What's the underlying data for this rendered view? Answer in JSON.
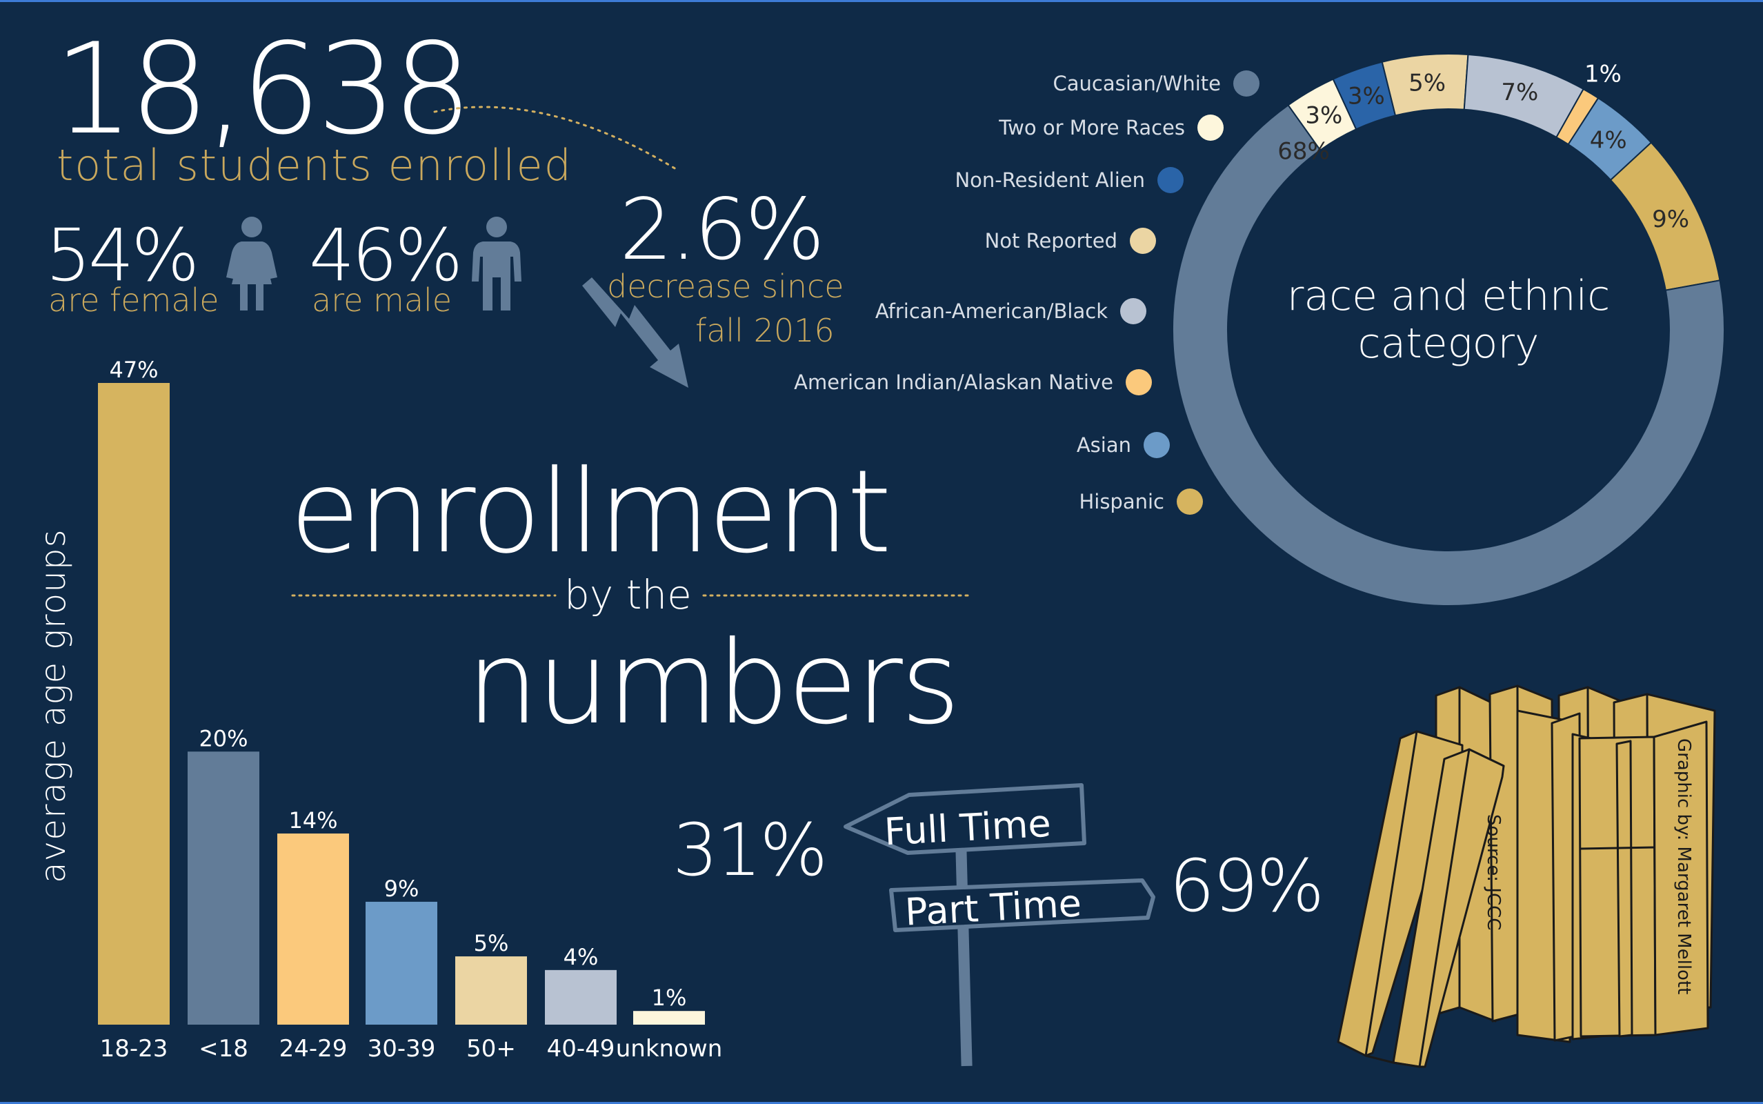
{
  "header": {
    "total_students": "18,638",
    "total_label": "total students enrolled",
    "female_pct": "54%",
    "female_label": "are female",
    "male_pct": "46%",
    "male_label": "are male",
    "decrease_pct": "2.6%",
    "decrease_line1": "decrease since",
    "decrease_line2": "fall 2016"
  },
  "title": {
    "line1": "enrollment",
    "line2": "by the",
    "line3": "numbers"
  },
  "colors": {
    "background": "#0f2a47",
    "gold": "#d4b060",
    "slate": "#627c98",
    "peach": "#fbc97c",
    "blue": "#6c9bc8",
    "tan": "#ebd5a3",
    "lightgray": "#b8c2d2",
    "cream": "#fdf6dc",
    "darkblue": "#2a64a8"
  },
  "chart_data": [
    {
      "type": "bar",
      "ylabel": "average age groups",
      "categories": [
        "18-23",
        "<18",
        "24-29",
        "30-39",
        "50+",
        "40-49",
        "unknown"
      ],
      "values": [
        47,
        20,
        14,
        9,
        5,
        4,
        1
      ],
      "value_labels": [
        "47%",
        "20%",
        "14%",
        "9%",
        "5%",
        "4%",
        "1%"
      ],
      "bar_colors": [
        "#d6b45f",
        "#627c98",
        "#fbc97c",
        "#6c9bc8",
        "#ebd5a3",
        "#b8c2d2",
        "#fdf6dc"
      ],
      "ylim": [
        0,
        47
      ]
    },
    {
      "type": "pie",
      "title": "race and ethnic category",
      "legend": [
        "Caucasian/White",
        "Two or More Races",
        "Non-Resident Alien",
        "Not Reported",
        "African-American/Black",
        "American Indian/Alaskan Native",
        "Asian",
        "Hispanic"
      ],
      "slices": [
        {
          "label": "Caucasian/White",
          "value": 68,
          "text": "68%",
          "color": "#627c98"
        },
        {
          "label": "Two or More Races",
          "value": 3,
          "text": "3%",
          "color": "#fdf6dc"
        },
        {
          "label": "Non-Resident Alien",
          "value": 3,
          "text": "3%",
          "color": "#2a64a8"
        },
        {
          "label": "Not Reported",
          "value": 5,
          "text": "5%",
          "color": "#ebd5a3"
        },
        {
          "label": "African-American/Black",
          "value": 7,
          "text": "7%",
          "color": "#b8c2d2"
        },
        {
          "label": "American Indian/Alaskan Native",
          "value": 1,
          "text": "1%",
          "color": "#fbc97c"
        },
        {
          "label": "Asian",
          "value": 4,
          "text": "4%",
          "color": "#6c9bc8"
        },
        {
          "label": "Hispanic",
          "value": 9,
          "text": "9%",
          "color": "#d6b45f"
        }
      ]
    },
    {
      "type": "table",
      "rows": [
        {
          "label": "Full Time",
          "value": "31%"
        },
        {
          "label": "Part Time",
          "value": "69%"
        }
      ]
    }
  ],
  "books": {
    "source": "Source: JCCC",
    "credit": "Graphic by: Margaret Mellott"
  }
}
